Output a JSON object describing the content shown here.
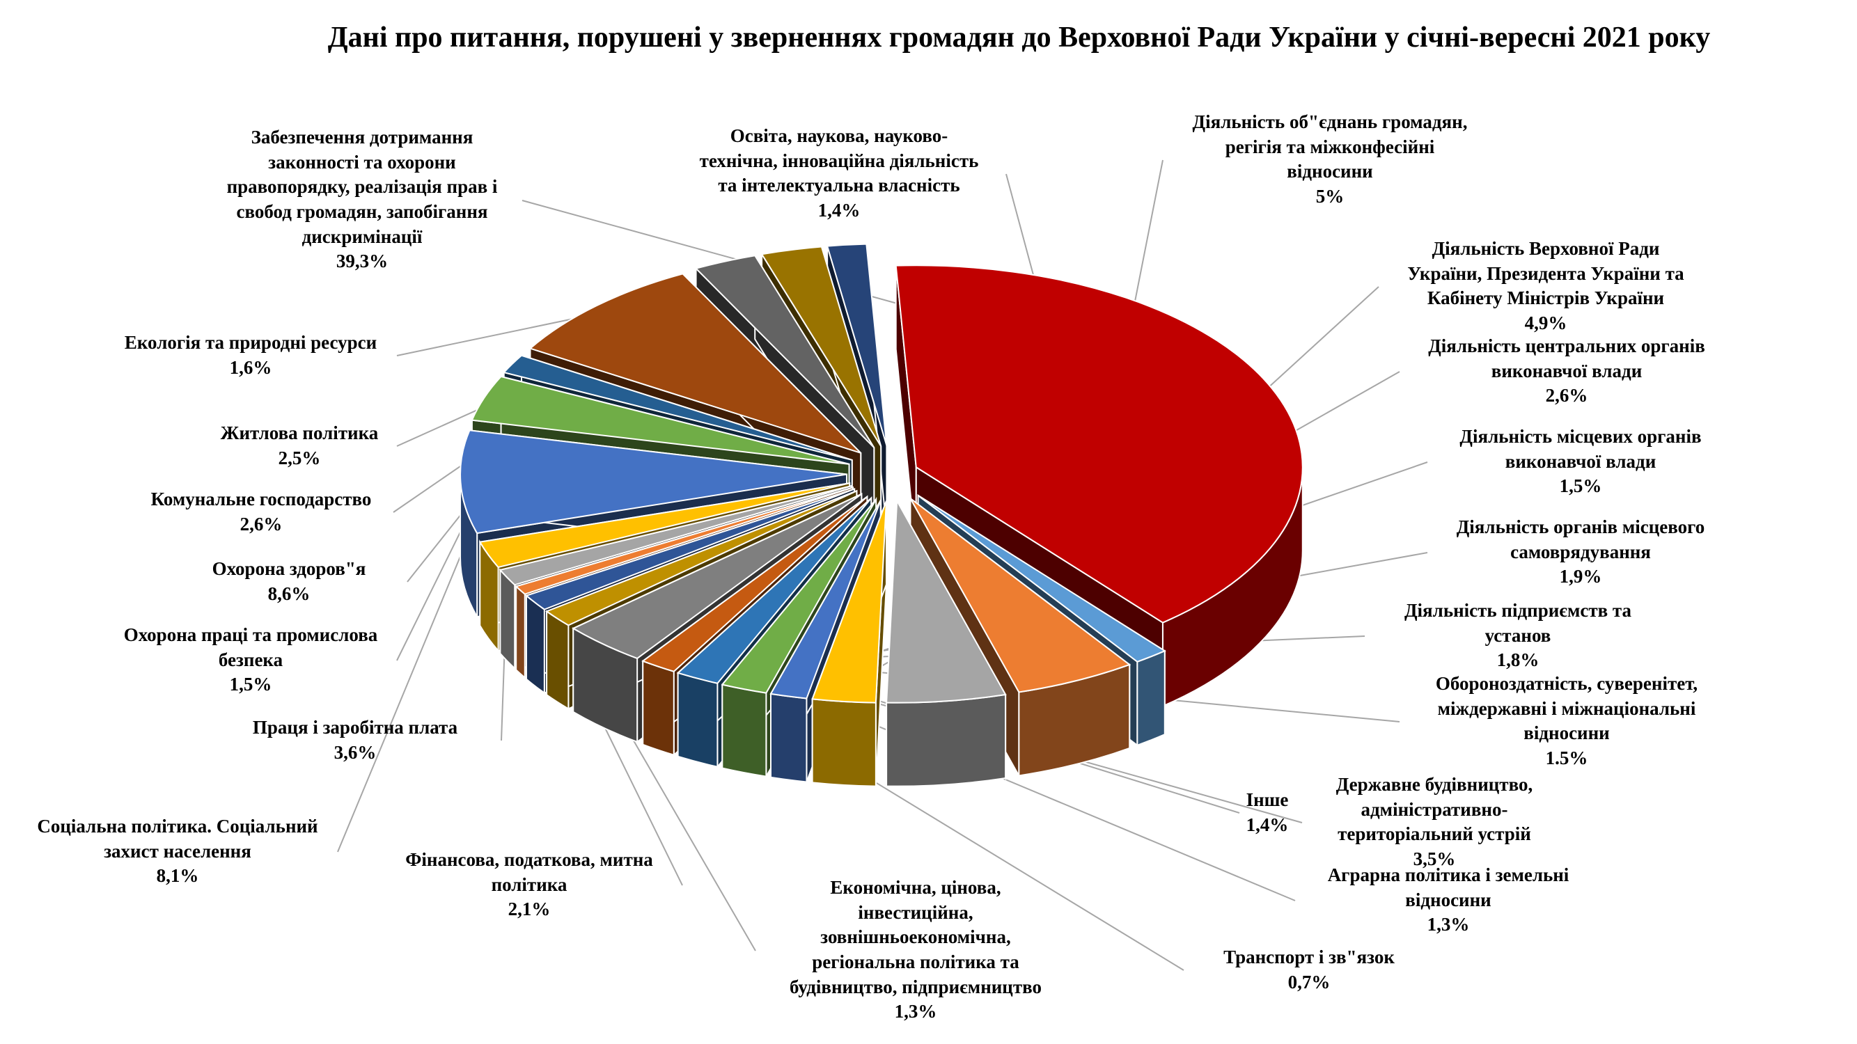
{
  "chart_data": {
    "type": "pie",
    "title": "Дані про питання, порушені у зверненнях громадян до Верховної Ради України у січні-вересні 2021 року",
    "slices": [
      {
        "label": [
          "Забезпечення дотримання",
          "законності та охорони",
          "правопорядку, реалізація прав і",
          "свобод громадян, запобігання",
          "дискримінації"
        ],
        "value_text": "39,3%",
        "value": 39.3,
        "color": "#C00000"
      },
      {
        "label": [
          "Освіта, наукова, науково-",
          "технічна, інноваційна діяльність",
          "та інтелектуальна власність"
        ],
        "value_text": "1,4%",
        "value": 1.4,
        "color": "#5B9BD5"
      },
      {
        "label": [
          "Діяльність об\"єднань громадян,",
          "регігія та міжконфесійні",
          "відносини"
        ],
        "value_text": "5%",
        "value": 5,
        "color": "#ED7D31"
      },
      {
        "label": [
          "Діяльність Верховної Ради",
          "України, Президента України та",
          "Кабінету Міністрів України"
        ],
        "value_text": "4,9%",
        "value": 4.9,
        "color": "#A5A5A5"
      },
      {
        "label": [
          "Діяльність центральних органів",
          "виконавчої влади"
        ],
        "value_text": "2,6%",
        "value": 2.6,
        "color": "#FFC000"
      },
      {
        "label": [
          "Діяльність місцевих органів",
          "виконавчої влади"
        ],
        "value_text": "1,5%",
        "value": 1.5,
        "color": "#4472C4"
      },
      {
        "label": [
          "Діяльність органів місцевого",
          "самоврядування"
        ],
        "value_text": "1,9%",
        "value": 1.9,
        "color": "#70AD47"
      },
      {
        "label": [
          "Діяльність підприємств та",
          "установ"
        ],
        "value_text": "1,8%",
        "value": 1.8,
        "color": "#2E75B6"
      },
      {
        "label": [
          "Обороноздатність, суверенітет,",
          "міждержавні і міжнаціональні",
          "відносини"
        ],
        "value_text": "1.5%",
        "value": 1.5,
        "color": "#C55A11"
      },
      {
        "label": [
          "Державне будівництво,",
          "адміністративно-",
          "територіальний устрій"
        ],
        "value_text": "3,5%",
        "value": 3.5,
        "color": "#7F7F7F"
      },
      {
        "label": [
          "Інше"
        ],
        "value_text": "1,4%",
        "value": 1.4,
        "color": "#BF9000"
      },
      {
        "label": [
          "Аграрна політика і земельні",
          "відносини"
        ],
        "value_text": "1,3%",
        "value": 1.3,
        "color": "#2F5597"
      },
      {
        "label": [
          "Транспорт і зв\"язок"
        ],
        "value_text": "0,7%",
        "value": 0.7,
        "color": "#ED7D31"
      },
      {
        "label": [
          "Економічна, цінова,",
          "інвестиційна,",
          "зовнішньоекономічна,",
          "регіональна політика та",
          "будівництво, підприємництво"
        ],
        "value_text": "1,3%",
        "value": 1.3,
        "color": "#A5A5A5"
      },
      {
        "label": [
          "Фінансова, податкова, митна",
          "політика"
        ],
        "value_text": "2,1%",
        "value": 2.1,
        "color": "#FFC000"
      },
      {
        "label": [
          "Соціальна політика. Соціальний",
          "захист населення"
        ],
        "value_text": "8,1%",
        "value": 8.1,
        "color": "#4472C4"
      },
      {
        "label": [
          "Праця і заробітна плата"
        ],
        "value_text": "3,6%",
        "value": 3.6,
        "color": "#70AD47"
      },
      {
        "label": [
          "Охорона праці та промислова",
          "безпека"
        ],
        "value_text": "1,5%",
        "value": 1.5,
        "color": "#255E91"
      },
      {
        "label": [
          "Охорона здоров\"я"
        ],
        "value_text": "8,6%",
        "value": 8.6,
        "color": "#9E480E"
      },
      {
        "label": [
          "Комунальне господарство"
        ],
        "value_text": "2,6%",
        "value": 2.6,
        "color": "#636363"
      },
      {
        "label": [
          "Житлова політика"
        ],
        "value_text": "2,5%",
        "value": 2.5,
        "color": "#997300"
      },
      {
        "label": [
          "Екологія та природні ресурси"
        ],
        "value_text": "1,6%",
        "value": 1.6,
        "color": "#264478"
      }
    ],
    "legend": "none",
    "style": "3d-exploded-pie"
  }
}
